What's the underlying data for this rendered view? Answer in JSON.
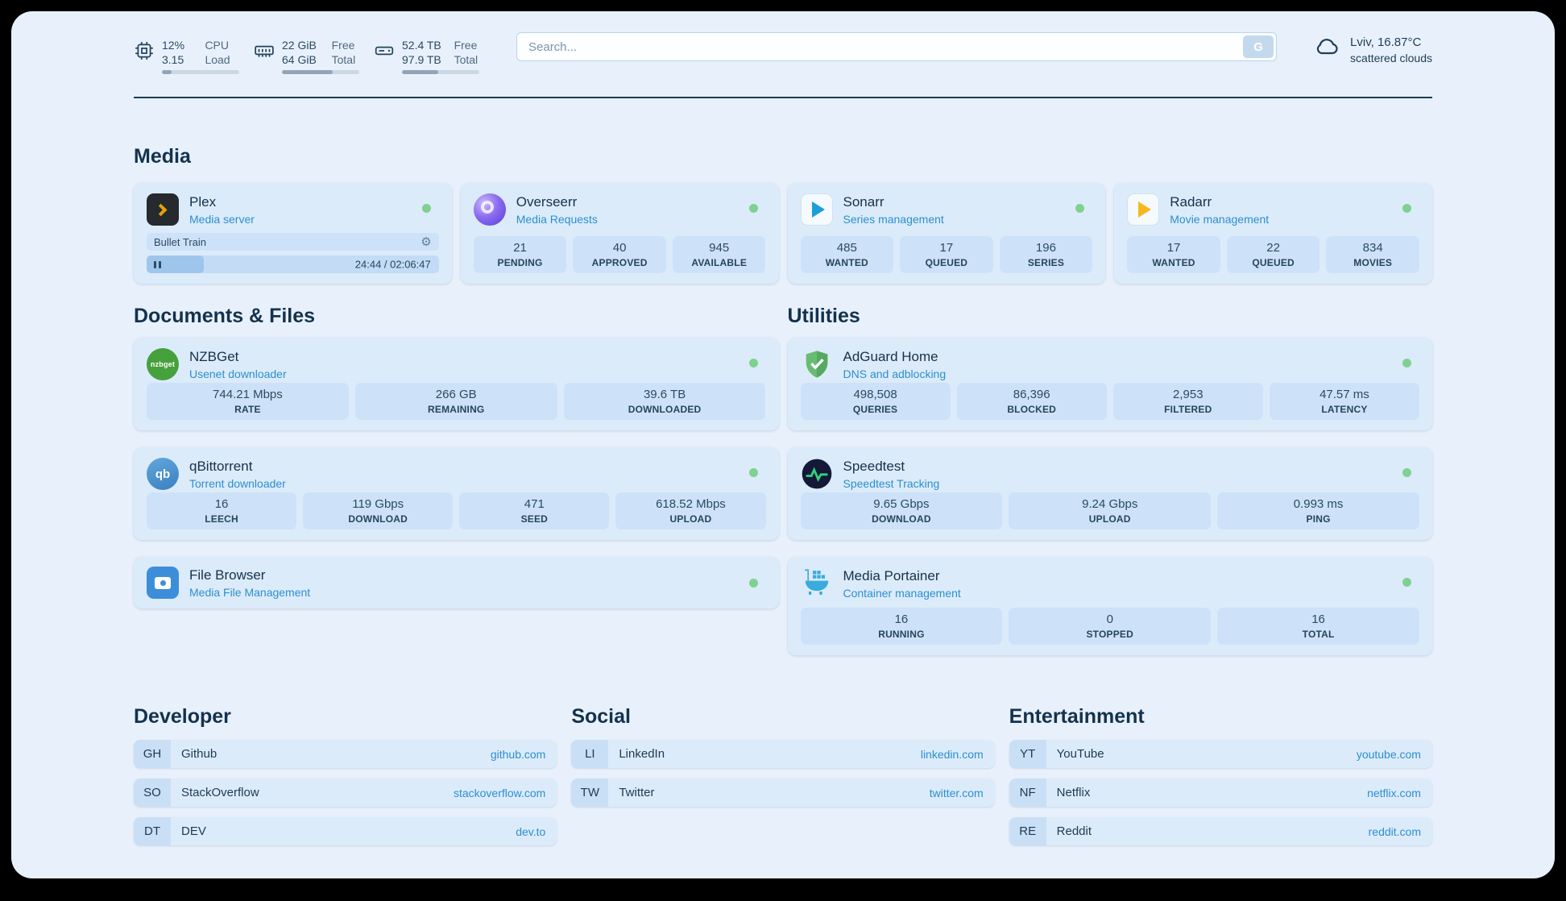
{
  "header": {
    "cpu": {
      "values": [
        "12%",
        "3.15"
      ],
      "labels": [
        "CPU",
        "Load"
      ],
      "progress": 12
    },
    "ram": {
      "values": [
        "22 GiB",
        "64 GiB"
      ],
      "labels": [
        "Free",
        "Total"
      ],
      "progress": 66
    },
    "disk": {
      "values": [
        "52.4 TB",
        "97.9 TB"
      ],
      "labels": [
        "Free",
        "Total"
      ],
      "progress": 47
    },
    "search": {
      "placeholder": "Search...",
      "button_label": "G"
    },
    "weather": {
      "location": "Lviv, 16.87°C",
      "condition": "scattered clouds"
    }
  },
  "sections": {
    "media": {
      "title": "Media",
      "cards": [
        {
          "name": "Plex",
          "subtitle": "Media server",
          "now_playing": "Bullet Train",
          "time": "24:44 / 02:06:47",
          "progress": 19.5,
          "status": "online"
        },
        {
          "name": "Overseerr",
          "subtitle": "Media Requests",
          "status": "online",
          "stats": [
            {
              "value": "21",
              "label": "PENDING"
            },
            {
              "value": "40",
              "label": "APPROVED"
            },
            {
              "value": "945",
              "label": "AVAILABLE"
            }
          ]
        },
        {
          "name": "Sonarr",
          "subtitle": "Series management",
          "status": "online",
          "stats": [
            {
              "value": "485",
              "label": "WANTED"
            },
            {
              "value": "17",
              "label": "QUEUED"
            },
            {
              "value": "196",
              "label": "SERIES"
            }
          ]
        },
        {
          "name": "Radarr",
          "subtitle": "Movie management",
          "status": "online",
          "stats": [
            {
              "value": "17",
              "label": "WANTED"
            },
            {
              "value": "22",
              "label": "QUEUED"
            },
            {
              "value": "834",
              "label": "MOVIES"
            }
          ]
        }
      ]
    },
    "documents": {
      "title": "Documents & Files",
      "cards": [
        {
          "name": "NZBGet",
          "subtitle": "Usenet downloader",
          "status": "online",
          "stats": [
            {
              "value": "744.21 Mbps",
              "label": "RATE"
            },
            {
              "value": "266 GB",
              "label": "REMAINING"
            },
            {
              "value": "39.6 TB",
              "label": "DOWNLOADED"
            }
          ]
        },
        {
          "name": "qBittorrent",
          "subtitle": "Torrent downloader",
          "status": "online",
          "stats": [
            {
              "value": "16",
              "label": "LEECH"
            },
            {
              "value": "119 Gbps",
              "label": "DOWNLOAD"
            },
            {
              "value": "471",
              "label": "SEED"
            },
            {
              "value": "618.52 Mbps",
              "label": "UPLOAD"
            }
          ]
        },
        {
          "name": "File Browser",
          "subtitle": "Media File Management",
          "status": "online",
          "stats": []
        }
      ]
    },
    "utilities": {
      "title": "Utilities",
      "cards": [
        {
          "name": "AdGuard Home",
          "subtitle": "DNS and adblocking",
          "status": "online",
          "stats": [
            {
              "value": "498,508",
              "label": "QUERIES"
            },
            {
              "value": "86,396",
              "label": "BLOCKED"
            },
            {
              "value": "2,953",
              "label": "FILTERED"
            },
            {
              "value": "47.57 ms",
              "label": "LATENCY"
            }
          ]
        },
        {
          "name": "Speedtest",
          "subtitle": "Speedtest Tracking",
          "status": "online",
          "stats": [
            {
              "value": "9.65 Gbps",
              "label": "DOWNLOAD"
            },
            {
              "value": "9.24 Gbps",
              "label": "UPLOAD"
            },
            {
              "value": "0.993 ms",
              "label": "PING"
            }
          ]
        },
        {
          "name": "Media Portainer",
          "subtitle": "Container management",
          "status": "online",
          "stats": [
            {
              "value": "16",
              "label": "RUNNING"
            },
            {
              "value": "0",
              "label": "STOPPED"
            },
            {
              "value": "16",
              "label": "TOTAL"
            }
          ]
        }
      ]
    },
    "bookmarks": [
      {
        "title": "Developer",
        "items": [
          {
            "abbr": "GH",
            "name": "Github",
            "url": "github.com"
          },
          {
            "abbr": "SO",
            "name": "StackOverflow",
            "url": "stackoverflow.com"
          },
          {
            "abbr": "DT",
            "name": "DEV",
            "url": "dev.to"
          }
        ]
      },
      {
        "title": "Social",
        "items": [
          {
            "abbr": "LI",
            "name": "LinkedIn",
            "url": "linkedin.com"
          },
          {
            "abbr": "TW",
            "name": "Twitter",
            "url": "twitter.com"
          }
        ]
      },
      {
        "title": "Entertainment",
        "items": [
          {
            "abbr": "YT",
            "name": "YouTube",
            "url": "youtube.com"
          },
          {
            "abbr": "NF",
            "name": "Netflix",
            "url": "netflix.com"
          },
          {
            "abbr": "RE",
            "name": "Reddit",
            "url": "reddit.com"
          }
        ]
      }
    ]
  },
  "colors": {
    "accent_blue": "#2b8fd0",
    "status_green": "#7fd191",
    "page_bg": "#e8f1fb",
    "card_bg": "#dcebfa"
  }
}
